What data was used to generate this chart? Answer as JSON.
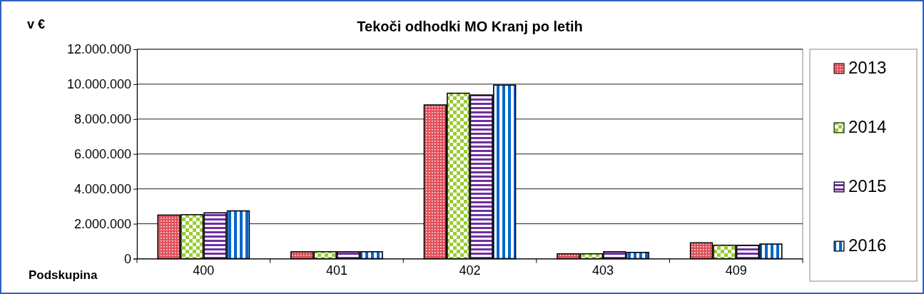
{
  "chart_data": {
    "type": "bar",
    "title": "Tekoči odhodki MO Kranj po letih",
    "ylabel": "v €",
    "xlabel": "Podskupina",
    "categories": [
      "400",
      "401",
      "402",
      "403",
      "409"
    ],
    "series": [
      {
        "name": "2013",
        "color": "#e0505a",
        "values": [
          2500000,
          400000,
          8810000,
          280000,
          910000
        ]
      },
      {
        "name": "2014",
        "color": "#99cc33",
        "values": [
          2520000,
          400000,
          9480000,
          280000,
          770000
        ]
      },
      {
        "name": "2015",
        "color": "#7030a0",
        "values": [
          2630000,
          400000,
          9380000,
          400000,
          770000
        ]
      },
      {
        "name": "2016",
        "color": "#0066cc",
        "values": [
          2740000,
          400000,
          9950000,
          360000,
          840000
        ]
      }
    ],
    "ylim": [
      0,
      12000000
    ],
    "yticks": [
      {
        "value": 0,
        "label": "0"
      },
      {
        "value": 2000000,
        "label": "2.000.000"
      },
      {
        "value": 4000000,
        "label": "4.000.000"
      },
      {
        "value": 6000000,
        "label": "6.000.000"
      },
      {
        "value": 8000000,
        "label": "8.000.000"
      },
      {
        "value": 10000000,
        "label": "10.000.000"
      },
      {
        "value": 12000000,
        "label": "12.000.000"
      }
    ],
    "grid": "y",
    "legend": "right"
  }
}
